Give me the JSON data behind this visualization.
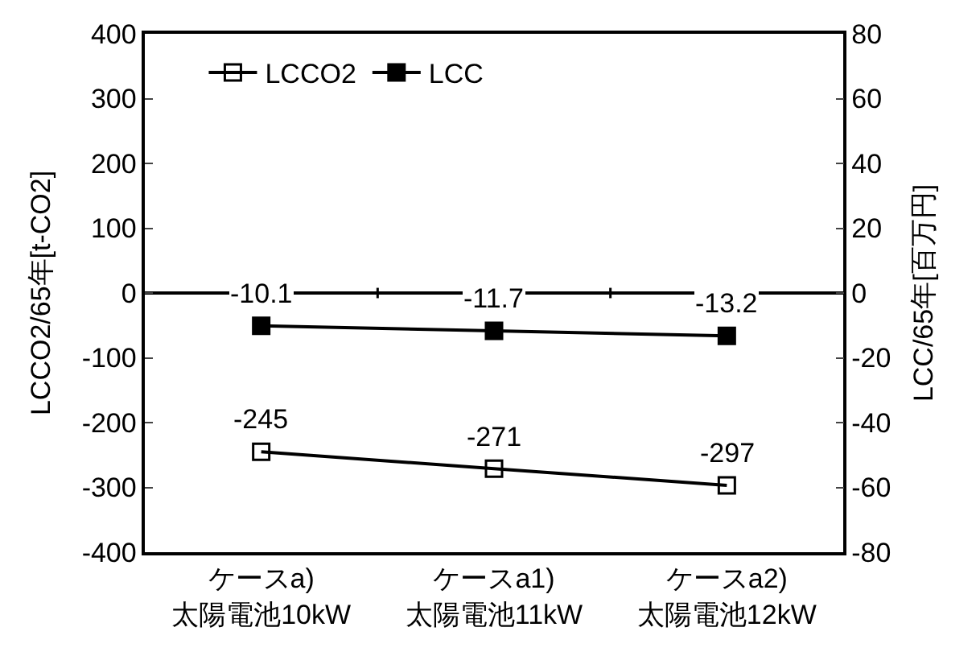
{
  "chart_data": {
    "type": "line",
    "categories": [
      "ケースa)\n太陽電池10kW",
      "ケースa1)\n太陽電池11kW",
      "ケースa2)\n太陽電池12kW"
    ],
    "ylabel": "LCCO2/65年[t-CO2]",
    "y2label": "LCC/65年[百万円]",
    "series": [
      {
        "name": "LCCO2",
        "color": "#000000",
        "values": [
          -245,
          -271,
          -297
        ],
        "marker": "square-open"
      },
      {
        "name": "LCC",
        "color": "#000000",
        "values": [
          -10.1,
          -11.7,
          -13.2
        ],
        "axis": "y2",
        "marker": "square"
      }
    ],
    "ylim": [
      -400,
      400
    ],
    "yticks": [
      -400,
      -300,
      -200,
      -100,
      0,
      100,
      200,
      300,
      400
    ],
    "y2lim": [
      -80,
      80
    ],
    "y2ticks": [
      -80,
      -60,
      -40,
      -20,
      0,
      20,
      40,
      60,
      80
    ],
    "data_labels": true,
    "legend": "top left",
    "line_style": "solid"
  }
}
